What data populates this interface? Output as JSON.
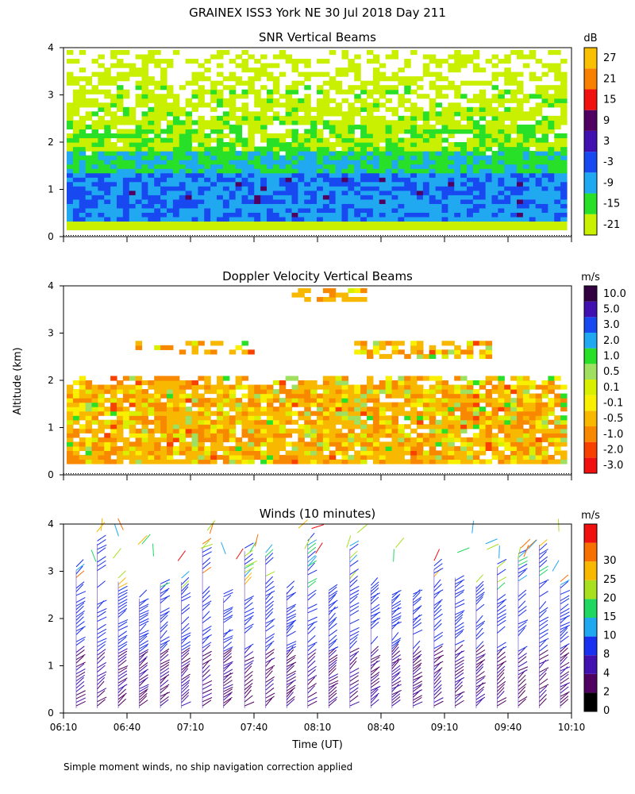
{
  "figure": {
    "title": "GRAINEX ISS3 York NE  30 Jul 2018 Day 211",
    "ylabel": "Altitude (km)",
    "xlabel": "Time (UT)",
    "footnote": "Simple moment winds, no ship navigation correction applied"
  },
  "chart_data": [
    {
      "type": "heatmap",
      "title": "SNR Vertical Beams",
      "units": "dB",
      "xlim": [
        "06:10",
        "10:10"
      ],
      "ylim": [
        0,
        4
      ],
      "yticks": [
        "0",
        "1",
        "2",
        "3",
        "4"
      ],
      "colorbar": [
        {
          "label": "-21",
          "color": "#c8f000"
        },
        {
          "label": "-15",
          "color": "#28e028"
        },
        {
          "label": "-9",
          "color": "#20a8f0"
        },
        {
          "label": "-3",
          "color": "#1848f0"
        },
        {
          "label": "3",
          "color": "#4010b0"
        },
        {
          "label": "9",
          "color": "#500060"
        },
        {
          "label": "15",
          "color": "#f01010"
        },
        {
          "label": "21",
          "color": "#f88000"
        },
        {
          "label": "27",
          "color": "#f8c000"
        }
      ]
    },
    {
      "type": "heatmap",
      "title": "Doppler Velocity Vertical Beams",
      "units": "m/s",
      "xlim": [
        "06:10",
        "10:10"
      ],
      "ylim": [
        0,
        4
      ],
      "yticks": [
        "0",
        "1",
        "2",
        "3",
        "4"
      ],
      "colorbar": [
        {
          "label": "-3.0",
          "color": "#f01010"
        },
        {
          "label": "-2.0",
          "color": "#f84000"
        },
        {
          "label": "-1.0",
          "color": "#f88800"
        },
        {
          "label": "-0.5",
          "color": "#f8b800"
        },
        {
          "label": "-0.1",
          "color": "#f8f000"
        },
        {
          "label": "0.1",
          "color": "#d8f000"
        },
        {
          "label": "0.5",
          "color": "#a0e060"
        },
        {
          "label": "1.0",
          "color": "#28e028"
        },
        {
          "label": "2.0",
          "color": "#20a8f0"
        },
        {
          "label": "3.0",
          "color": "#1848f0"
        },
        {
          "label": "5.0",
          "color": "#4010b0"
        },
        {
          "label": "10.0",
          "color": "#300040"
        }
      ]
    },
    {
      "type": "scatter",
      "title": "Winds (10 minutes)",
      "units": "m/s",
      "xlim": [
        "06:10",
        "10:10"
      ],
      "ylim": [
        0,
        4
      ],
      "yticks": [
        "0",
        "1",
        "2",
        "3",
        "4"
      ],
      "xticks": [
        "06:10",
        "06:40",
        "07:10",
        "07:40",
        "08:10",
        "08:40",
        "09:10",
        "09:40",
        "10:10"
      ],
      "colorbar": [
        {
          "label": "0",
          "color": "#000000"
        },
        {
          "label": "2",
          "color": "#500060"
        },
        {
          "label": "4",
          "color": "#4010b0"
        },
        {
          "label": "8",
          "color": "#1830f0"
        },
        {
          "label": "10",
          "color": "#20a8f0"
        },
        {
          "label": "15",
          "color": "#20d860"
        },
        {
          "label": "20",
          "color": "#a8e020"
        },
        {
          "label": "25",
          "color": "#f8b800"
        },
        {
          "label": "30",
          "color": "#f87000"
        },
        {
          "label": "",
          "color": "#f01010"
        }
      ]
    }
  ]
}
